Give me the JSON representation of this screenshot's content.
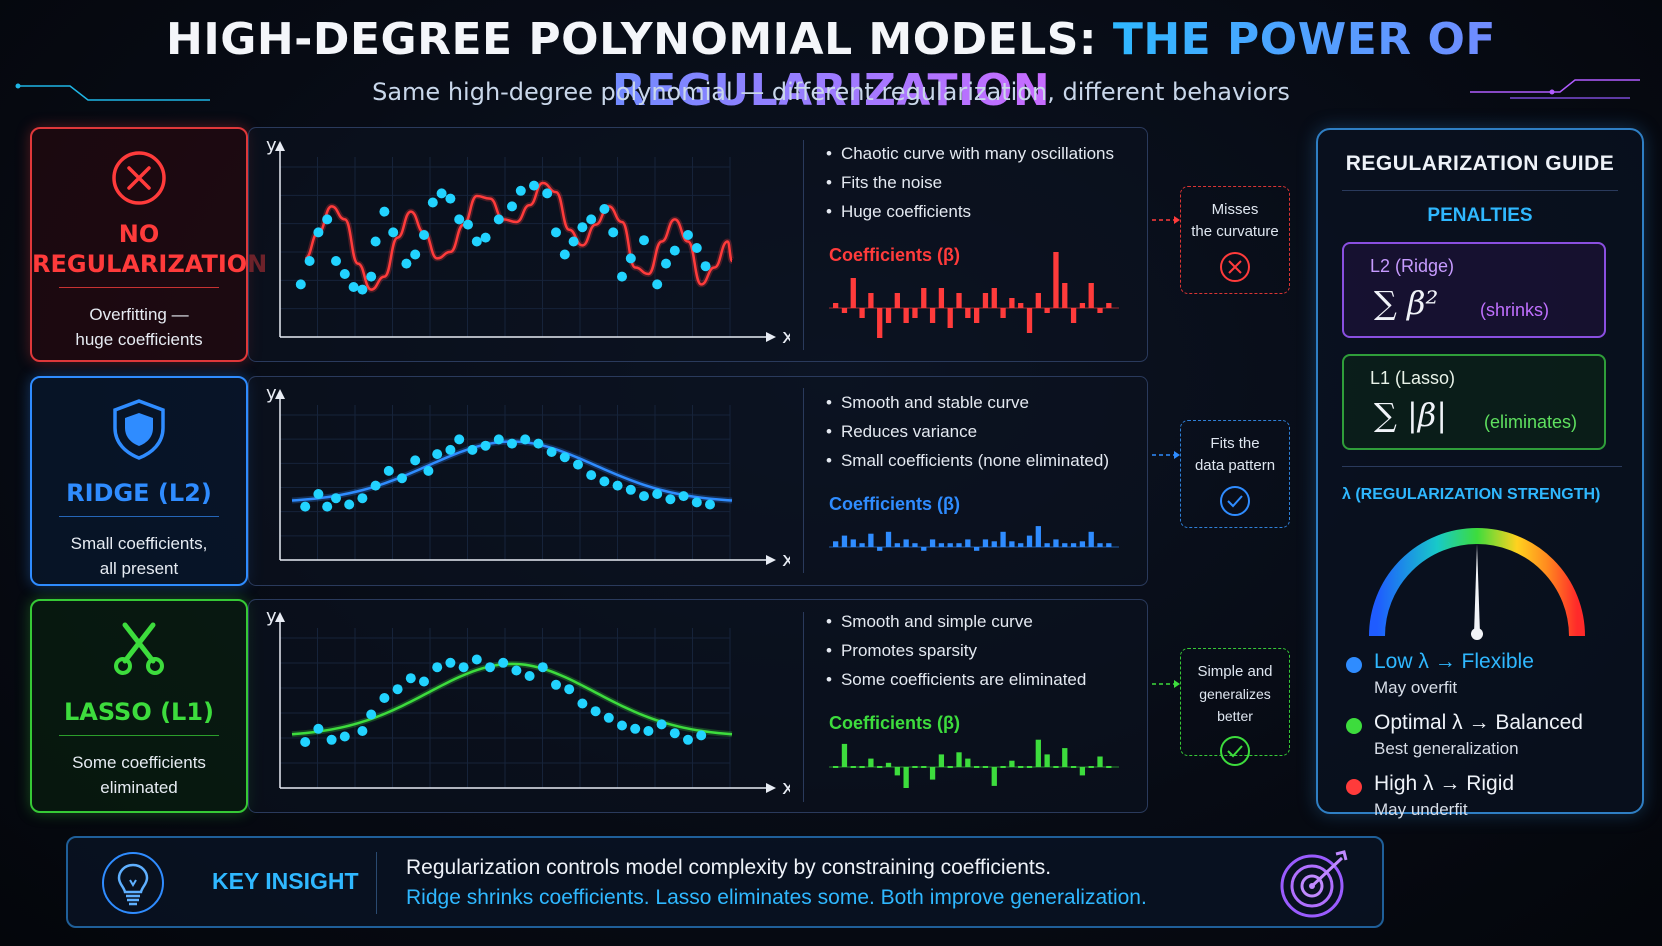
{
  "header": {
    "title_main": "HIGH-DEGREE POLYNOMIAL MODELS: ",
    "title_highlight": "THE POWER OF REGULARIZATION",
    "subtitle": "Same high-degree polynomial — different regularization, different behaviors"
  },
  "rows": [
    {
      "title_line1": "NO",
      "title_line2": "REGULARIZATION",
      "desc_line1": "Overfitting —",
      "desc_line2": "huge coefficients",
      "icon": "x-circle-icon",
      "color": "#ff3b3b",
      "bullets": [
        "Chaotic curve with many oscillations",
        "Fits the noise",
        "Huge coefficients"
      ],
      "coef_title": "Coefficients (β)",
      "coefficients": [
        0.1,
        -0.1,
        0.6,
        -0.2,
        0.3,
        -0.6,
        -0.3,
        0.3,
        -0.3,
        -0.2,
        0.4,
        -0.3,
        0.4,
        -0.4,
        0.3,
        -0.2,
        -0.3,
        0.3,
        0.4,
        -0.2,
        0.2,
        0.1,
        -0.5,
        0.3,
        -0.1,
        1.2,
        0.5,
        -0.3,
        0.1,
        0.5,
        -0.1,
        0.1
      ],
      "callout_line1": "Misses",
      "callout_line2": "the curvature",
      "callout_icon": "x-circle-icon",
      "axis_x": "x",
      "axis_y": "y",
      "curve": [
        [
          0.03,
          0.42
        ],
        [
          0.06,
          0.62
        ],
        [
          0.09,
          0.82
        ],
        [
          0.12,
          0.72
        ],
        [
          0.15,
          0.38
        ],
        [
          0.18,
          0.18
        ],
        [
          0.21,
          0.28
        ],
        [
          0.24,
          0.58
        ],
        [
          0.27,
          0.78
        ],
        [
          0.3,
          0.62
        ],
        [
          0.33,
          0.42
        ],
        [
          0.36,
          0.47
        ],
        [
          0.39,
          0.68
        ],
        [
          0.42,
          0.9
        ],
        [
          0.45,
          0.88
        ],
        [
          0.48,
          0.72
        ],
        [
          0.51,
          0.7
        ],
        [
          0.54,
          0.83
        ],
        [
          0.57,
          1.0
        ],
        [
          0.6,
          0.93
        ],
        [
          0.63,
          0.64
        ],
        [
          0.66,
          0.52
        ],
        [
          0.69,
          0.68
        ],
        [
          0.72,
          0.82
        ],
        [
          0.75,
          0.7
        ],
        [
          0.78,
          0.35
        ],
        [
          0.81,
          0.3
        ],
        [
          0.84,
          0.55
        ],
        [
          0.87,
          0.72
        ],
        [
          0.9,
          0.55
        ],
        [
          0.93,
          0.22
        ],
        [
          0.96,
          0.35
        ],
        [
          0.99,
          0.55
        ],
        [
          1.0,
          0.4
        ]
      ],
      "points": [
        [
          0.02,
          0.22
        ],
        [
          0.04,
          0.4
        ],
        [
          0.06,
          0.62
        ],
        [
          0.08,
          0.72
        ],
        [
          0.1,
          0.4
        ],
        [
          0.12,
          0.3
        ],
        [
          0.14,
          0.2
        ],
        [
          0.16,
          0.18
        ],
        [
          0.18,
          0.28
        ],
        [
          0.19,
          0.55
        ],
        [
          0.21,
          0.78
        ],
        [
          0.23,
          0.62
        ],
        [
          0.26,
          0.38
        ],
        [
          0.28,
          0.45
        ],
        [
          0.3,
          0.6
        ],
        [
          0.32,
          0.85
        ],
        [
          0.34,
          0.92
        ],
        [
          0.36,
          0.88
        ],
        [
          0.38,
          0.72
        ],
        [
          0.4,
          0.68
        ],
        [
          0.42,
          0.55
        ],
        [
          0.44,
          0.58
        ],
        [
          0.47,
          0.72
        ],
        [
          0.5,
          0.82
        ],
        [
          0.52,
          0.94
        ],
        [
          0.55,
          0.98
        ],
        [
          0.58,
          0.92
        ],
        [
          0.6,
          0.62
        ],
        [
          0.62,
          0.45
        ],
        [
          0.64,
          0.55
        ],
        [
          0.66,
          0.66
        ],
        [
          0.68,
          0.72
        ],
        [
          0.71,
          0.8
        ],
        [
          0.73,
          0.62
        ],
        [
          0.75,
          0.28
        ],
        [
          0.77,
          0.42
        ],
        [
          0.8,
          0.56
        ],
        [
          0.83,
          0.22
        ],
        [
          0.85,
          0.38
        ],
        [
          0.87,
          0.48
        ],
        [
          0.9,
          0.6
        ],
        [
          0.92,
          0.5
        ],
        [
          0.94,
          0.36
        ]
      ]
    },
    {
      "title_line1": "RIDGE (L2)",
      "title_line2": "",
      "desc_line1": "Small coefficients,",
      "desc_line2": "all present",
      "icon": "shield-icon",
      "color": "#2f8cff",
      "bullets": [
        "Smooth and stable curve",
        "Reduces variance",
        "Small coefficients (none eliminated)"
      ],
      "coef_title": "Coefficients (β)",
      "coefficients": [
        0.15,
        0.3,
        0.2,
        0.1,
        0.35,
        -0.1,
        0.4,
        0.1,
        0.2,
        0.1,
        -0.1,
        0.2,
        0.1,
        0.1,
        0.1,
        0.2,
        -0.1,
        0.2,
        0.15,
        0.4,
        0.15,
        0.1,
        0.3,
        0.55,
        0.1,
        0.2,
        0.1,
        0.1,
        0.15,
        0.4,
        0.1,
        0.1
      ],
      "callout_line1": "Fits the",
      "callout_line2": "data pattern",
      "callout_icon": "check-circle-icon",
      "axis_x": "x",
      "axis_y": "y",
      "curve_type": "smooth",
      "points": [
        [
          0.03,
          0.28
        ],
        [
          0.06,
          0.4
        ],
        [
          0.08,
          0.28
        ],
        [
          0.1,
          0.36
        ],
        [
          0.13,
          0.3
        ],
        [
          0.16,
          0.36
        ],
        [
          0.19,
          0.48
        ],
        [
          0.22,
          0.62
        ],
        [
          0.25,
          0.55
        ],
        [
          0.28,
          0.72
        ],
        [
          0.31,
          0.62
        ],
        [
          0.33,
          0.78
        ],
        [
          0.36,
          0.82
        ],
        [
          0.38,
          0.92
        ],
        [
          0.41,
          0.82
        ],
        [
          0.44,
          0.86
        ],
        [
          0.47,
          0.92
        ],
        [
          0.5,
          0.88
        ],
        [
          0.53,
          0.92
        ],
        [
          0.56,
          0.88
        ],
        [
          0.59,
          0.8
        ],
        [
          0.62,
          0.75
        ],
        [
          0.65,
          0.68
        ],
        [
          0.68,
          0.58
        ],
        [
          0.71,
          0.52
        ],
        [
          0.74,
          0.48
        ],
        [
          0.77,
          0.44
        ],
        [
          0.8,
          0.38
        ],
        [
          0.83,
          0.4
        ],
        [
          0.86,
          0.35
        ],
        [
          0.89,
          0.38
        ],
        [
          0.92,
          0.32
        ],
        [
          0.95,
          0.3
        ]
      ]
    },
    {
      "title_line1": "LASSO (L1)",
      "title_line2": "",
      "desc_line1": "Some coefficients",
      "desc_line2": "eliminated",
      "icon": "scissors-icon",
      "color": "#3ddc3d",
      "bullets": [
        "Smooth and simple curve",
        "Promotes sparsity",
        "Some coefficients are eliminated"
      ],
      "coef_title": "Coefficients (β)",
      "coefficients": [
        0,
        0.55,
        0,
        0,
        0.2,
        0,
        0.1,
        -0.2,
        -0.5,
        0,
        0,
        -0.3,
        0.3,
        0,
        0.35,
        0.2,
        0,
        0,
        -0.45,
        0,
        0.15,
        0,
        0,
        0.65,
        0.3,
        0,
        0.45,
        0,
        -0.2,
        0,
        0.25,
        0
      ],
      "callout_line1": "Simple and",
      "callout_line2": "generalizes better",
      "callout_icon": "check-circle-icon",
      "axis_x": "x",
      "axis_y": "y",
      "curve_type": "smooth",
      "points": [
        [
          0.03,
          0.2
        ],
        [
          0.06,
          0.32
        ],
        [
          0.09,
          0.22
        ],
        [
          0.12,
          0.25
        ],
        [
          0.16,
          0.3
        ],
        [
          0.18,
          0.45
        ],
        [
          0.21,
          0.6
        ],
        [
          0.24,
          0.68
        ],
        [
          0.27,
          0.78
        ],
        [
          0.3,
          0.75
        ],
        [
          0.33,
          0.88
        ],
        [
          0.36,
          0.92
        ],
        [
          0.39,
          0.88
        ],
        [
          0.42,
          0.95
        ],
        [
          0.45,
          0.88
        ],
        [
          0.48,
          0.92
        ],
        [
          0.51,
          0.85
        ],
        [
          0.54,
          0.8
        ],
        [
          0.57,
          0.88
        ],
        [
          0.6,
          0.72
        ],
        [
          0.63,
          0.68
        ],
        [
          0.66,
          0.55
        ],
        [
          0.69,
          0.48
        ],
        [
          0.72,
          0.42
        ],
        [
          0.75,
          0.35
        ],
        [
          0.78,
          0.32
        ],
        [
          0.81,
          0.3
        ],
        [
          0.84,
          0.36
        ],
        [
          0.87,
          0.28
        ],
        [
          0.9,
          0.22
        ],
        [
          0.93,
          0.26
        ]
      ]
    }
  ],
  "guide": {
    "title": "REGULARIZATION GUIDE",
    "penalties_label": "PENALTIES",
    "l2_name": "L2 (Ridge)",
    "l2_formula": "∑ β²",
    "l2_effect": "(shrinks)",
    "l1_name": "L1 (Lasso)",
    "l1_formula": "∑ |β|",
    "l1_effect": "(eliminates)",
    "lambda_label": "λ (REGULARIZATION STRENGTH)",
    "gauge_level": 0.5,
    "legend": [
      {
        "main": "Low λ → Flexible",
        "sub": "May overfit",
        "color": "#2f8cff"
      },
      {
        "main": "Optimal λ → Balanced",
        "sub": "Best generalization",
        "color": "#3ddc3d"
      },
      {
        "main": "High λ → Rigid",
        "sub": "May underfit",
        "color": "#ff3b3b"
      }
    ]
  },
  "insight": {
    "label": "KEY INSIGHT",
    "line1": "Regularization controls model complexity by constraining coefficients.",
    "line2": "Ridge shrinks coefficients. Lasso eliminates some. Both improve generalization."
  }
}
